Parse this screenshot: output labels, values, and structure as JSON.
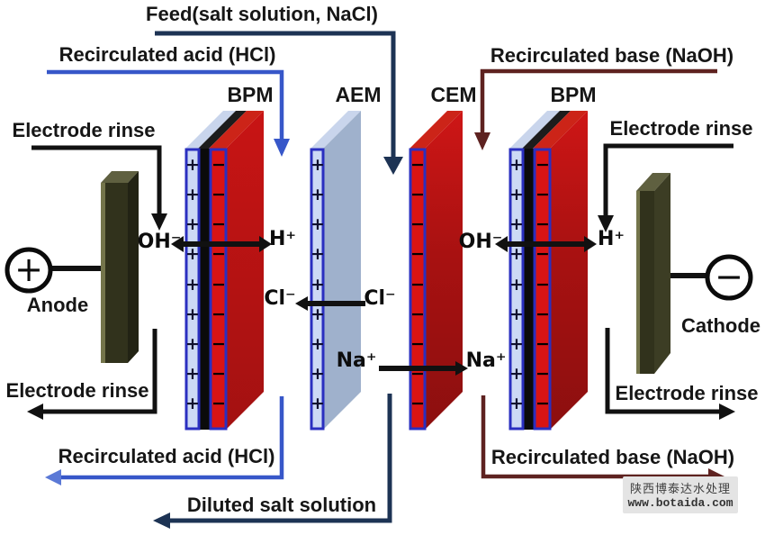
{
  "colors": {
    "feed_line": "#1d3354",
    "acid_line": "#3757c9",
    "acid_arrow": "#5b79d6",
    "base_line": "#5e2220",
    "ink": "#111111",
    "strip_border": "#2a2fc0",
    "strip_light": "#ccd9f5",
    "aem_top": "#c9d5ec",
    "aem_body": "#9fb1cc",
    "red_strip": "#d91414",
    "red_top": "#cc2418",
    "black_layer": "#0b0b0b",
    "electrode_front": "#31321c",
    "electrode_side": "#222314",
    "electrode_top": "#5f6040",
    "electrode_highlight": "#74754b",
    "plus_symbol": "#10102e",
    "minus_symbol": "#000000",
    "watermark_bg": "#e4e4e4",
    "watermark_text": "#3f3f3f"
  },
  "streams": {
    "feed": "Feed(salt solution, NaCl)",
    "acid_top": "Recirculated acid (HCl)",
    "base_top": "Recirculated base (NaOH)",
    "acid_bottom": "Recirculated acid (HCl)",
    "base_bottom": "Recirculated base (NaOH)",
    "diluate": "Diluted salt solution",
    "electrode_rinse_top_left": "Electrode rinse",
    "electrode_rinse_top_right": "Electrode rinse",
    "electrode_rinse_bottom_left": "Electrode rinse",
    "electrode_rinse_bottom_right": "Electrode rinse"
  },
  "membranes": {
    "bpm_left": {
      "label": "BPM",
      "anion_side_charges": "+++++++++",
      "cation_side_charges": "−−−−−−−−−"
    },
    "aem": {
      "label": "AEM",
      "charges": "+++++++++"
    },
    "cem": {
      "label": "CEM",
      "charges": "−−−−−−−−−"
    },
    "bpm_right": {
      "label": "BPM",
      "anion_side_charges": "+++++++++",
      "cation_side_charges": "−−−−−−−−−"
    }
  },
  "ions": {
    "bpm_left_oh": "OH⁻",
    "bpm_left_h": "H⁺",
    "cl_acid_side": "Cl⁻",
    "cl_feed_side": "Cl⁻",
    "na_feed_side": "Na⁺",
    "na_base_side": "Na⁺",
    "bpm_right_oh": "OH⁻",
    "bpm_right_h": "H⁺"
  },
  "electrodes": {
    "anode": {
      "label": "Anode",
      "symbol": "+"
    },
    "cathode": {
      "label": "Cathode",
      "symbol": "−"
    }
  },
  "watermark": {
    "line1": "陕西博泰达水处理",
    "line2": "www.botaida.com"
  }
}
